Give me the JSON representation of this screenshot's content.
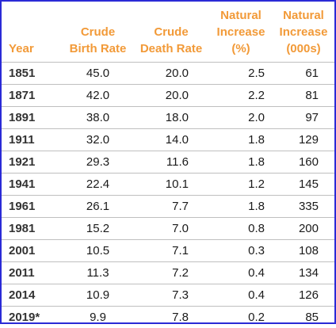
{
  "table": {
    "headers": {
      "year": [
        "Year"
      ],
      "birth": [
        "Crude",
        "Birth Rate"
      ],
      "death": [
        "Crude",
        "Death Rate"
      ],
      "pct": [
        "Natural",
        "Increase",
        "(%)"
      ],
      "k": [
        "Natural",
        "Increase",
        "(000s)"
      ]
    },
    "rows": [
      {
        "year": "1851",
        "birth": "45.0",
        "death": "20.0",
        "pct": "2.5",
        "k": "61"
      },
      {
        "year": "1871",
        "birth": "42.0",
        "death": "20.0",
        "pct": "2.2",
        "k": "81"
      },
      {
        "year": "1891",
        "birth": "38.0",
        "death": "18.0",
        "pct": "2.0",
        "k": "97"
      },
      {
        "year": "1911",
        "birth": "32.0",
        "death": "14.0",
        "pct": "1.8",
        "k": "129"
      },
      {
        "year": "1921",
        "birth": "29.3",
        "death": "11.6",
        "pct": "1.8",
        "k": "160"
      },
      {
        "year": "1941",
        "birth": "22.4",
        "death": "10.1",
        "pct": "1.2",
        "k": "145"
      },
      {
        "year": "1961",
        "birth": "26.1",
        "death": "7.7",
        "pct": "1.8",
        "k": "335"
      },
      {
        "year": "1981",
        "birth": "15.2",
        "death": "7.0",
        "pct": "0.8",
        "k": "200"
      },
      {
        "year": "2001",
        "birth": "10.5",
        "death": "7.1",
        "pct": "0.3",
        "k": "108"
      },
      {
        "year": "2011",
        "birth": "11.3",
        "death": "7.2",
        "pct": "0.4",
        "k": "134"
      },
      {
        "year": "2014",
        "birth": "10.9",
        "death": "7.3",
        "pct": "0.4",
        "k": "126"
      },
      {
        "year": "2019*",
        "birth": "9.9",
        "death": "7.8",
        "pct": "0.2",
        "k": "85"
      }
    ]
  },
  "colors": {
    "header_text": "#f29a38",
    "border": "#2a2ad6",
    "rule": "#bfbfbf"
  }
}
